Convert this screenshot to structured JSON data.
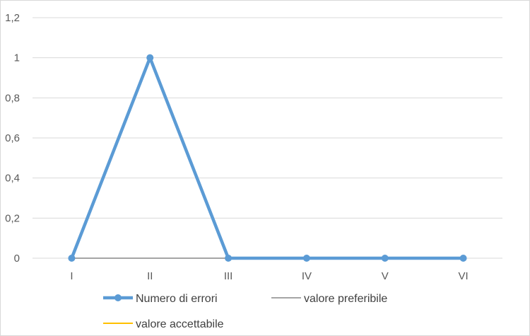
{
  "chart_data": {
    "type": "line",
    "categories": [
      "I",
      "II",
      "III",
      "IV",
      "V",
      "VI"
    ],
    "ylim": [
      0,
      1.2
    ],
    "y_ticks": [
      0,
      0.2,
      0.4,
      0.6,
      0.8,
      1,
      1.2
    ],
    "y_tick_labels": [
      "0",
      "0,2",
      "0,4",
      "0,6",
      "0,8",
      "1",
      "1,2"
    ],
    "grid": true,
    "legend_position": "bottom",
    "series": [
      {
        "name": "Numero di errori",
        "values": [
          0,
          1,
          0,
          0,
          0,
          0
        ],
        "color": "#5B9BD5",
        "markers": true
      },
      {
        "name": "valore preferibile",
        "values": [
          0,
          0,
          0,
          0,
          0,
          0
        ],
        "color": "#A5A5A5",
        "markers": false
      },
      {
        "name": "valore accettabile",
        "values": [
          0,
          0,
          0,
          0,
          0,
          0
        ],
        "color": "#FFC000",
        "markers": false
      }
    ]
  }
}
